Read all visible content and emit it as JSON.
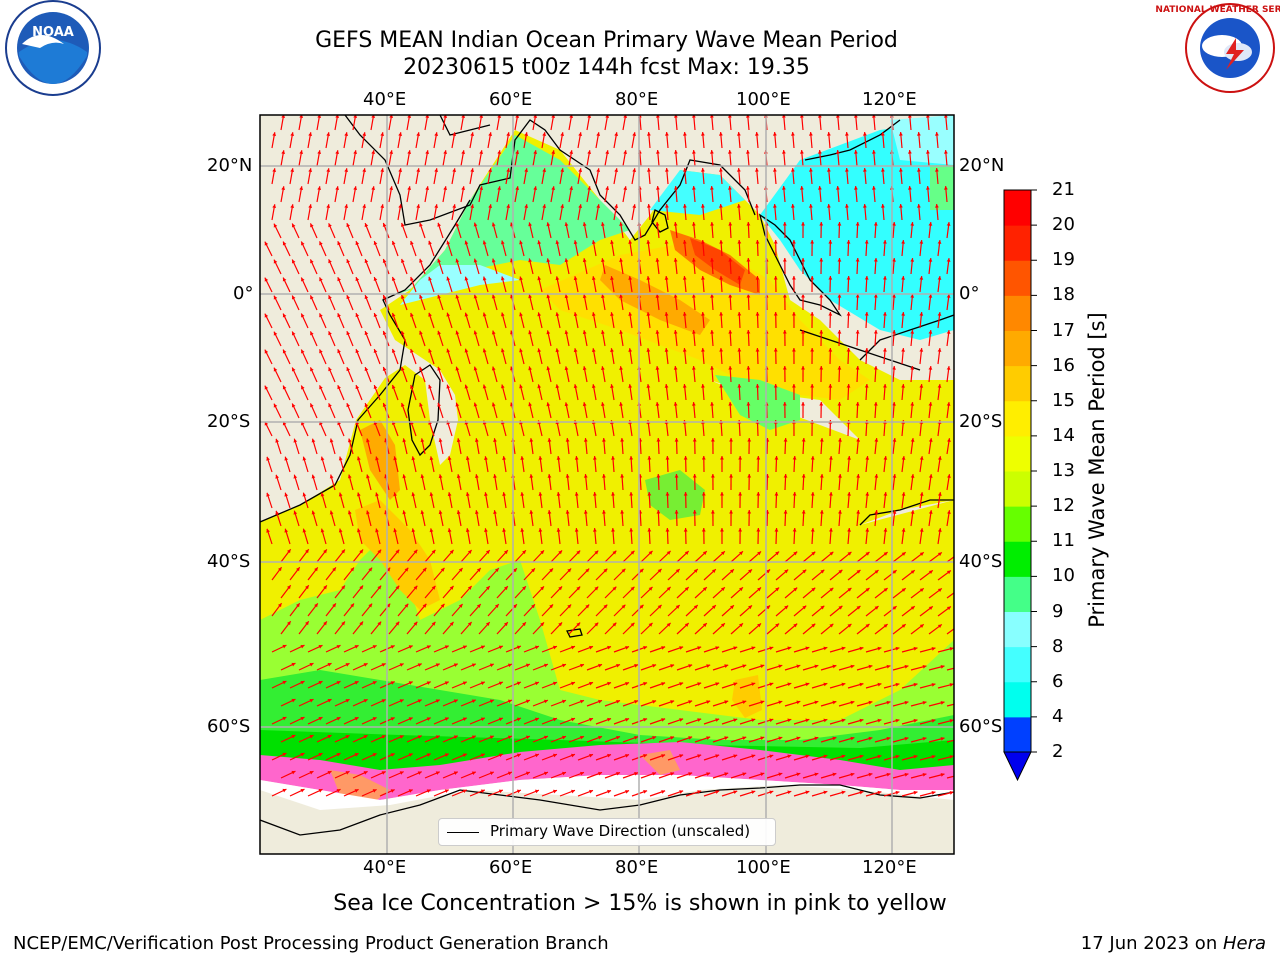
{
  "title": {
    "line1": "GEFS MEAN Indian Ocean Primary Wave Mean Period",
    "line2": "20230615 t00z 144h fcst   Max: 19.35"
  },
  "axes": {
    "lon_labels": [
      "40°E",
      "60°E",
      "80°E",
      "100°E",
      "120°E"
    ],
    "lat_labels": [
      "20°N",
      "0°",
      "20°S",
      "40°S",
      "60°S"
    ]
  },
  "colorbar": {
    "label": "Primary Wave Mean Period [s]",
    "ticks": [
      "2",
      "4",
      "6",
      "8",
      "9",
      "10",
      "11",
      "12",
      "13",
      "14",
      "15",
      "16",
      "17",
      "18",
      "19",
      "20",
      "21"
    ],
    "colors": [
      "#0040ff",
      "#00ccff",
      "#00ffee",
      "#44ffff",
      "#88ffff",
      "#44ff88",
      "#00ee00",
      "#66ff00",
      "#ccff00",
      "#eeff00",
      "#ffee00",
      "#ffcc00",
      "#ffaa00",
      "#ff8800",
      "#ff5500",
      "#ff2200",
      "#ff0000"
    ],
    "extend_color": "#0000ee"
  },
  "legend": {
    "label": "Primary Wave Direction (unscaled)"
  },
  "footer": {
    "note": "Sea Ice Concentration > 15% is shown in pink to yellow",
    "left": "NCEP/EMC/Verification Post Processing Product Generation Branch",
    "right_date": "17 Jun 2023 on ",
    "right_system": "Hera"
  },
  "logos": {
    "noaa": "NOAA",
    "nws": "NATIONAL WEATHER SERVICE"
  }
}
